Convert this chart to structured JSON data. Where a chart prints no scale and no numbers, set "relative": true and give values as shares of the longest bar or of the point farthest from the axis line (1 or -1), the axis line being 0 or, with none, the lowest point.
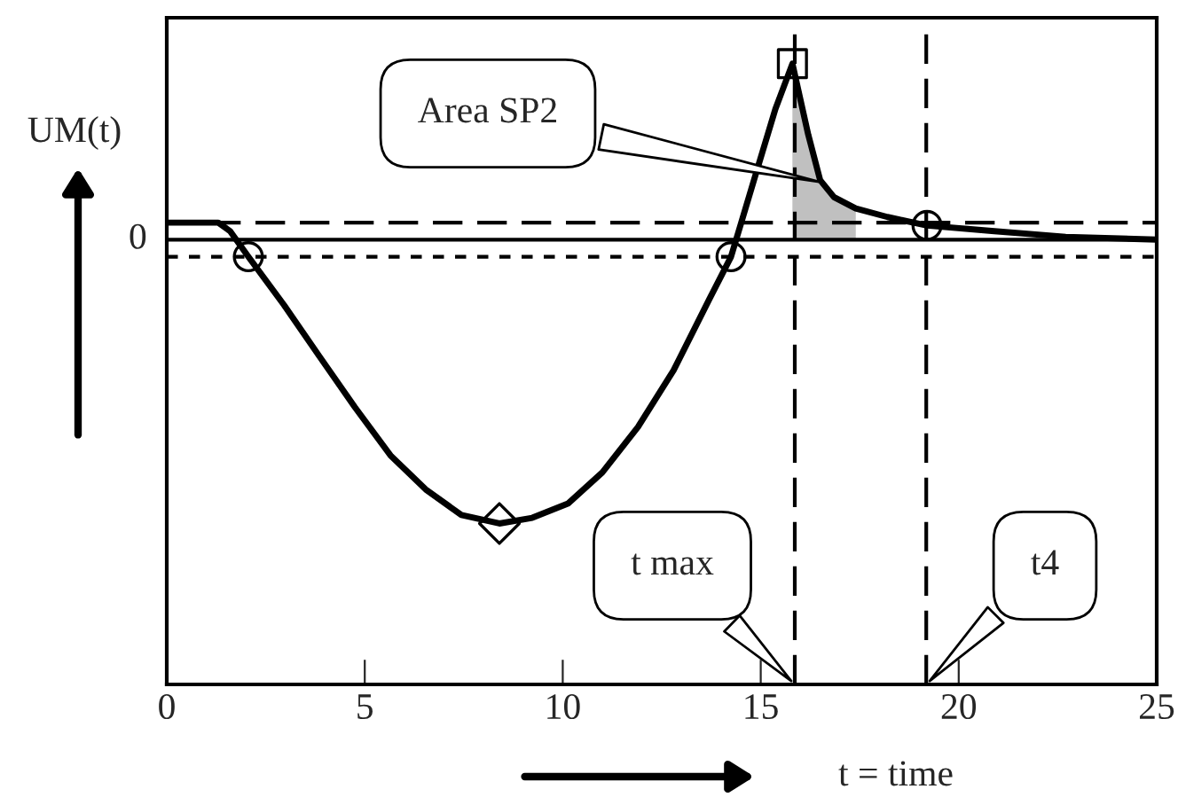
{
  "chart_data": {
    "type": "line",
    "relative": true,
    "xlabel": "t = time",
    "ylabel": "UM(t)",
    "xlim": [
      0,
      25
    ],
    "xticks": [
      0,
      5,
      10,
      15,
      20,
      25
    ],
    "tick_labels": "x",
    "grid": false,
    "series": [
      {
        "type": "area",
        "color": "#c0c0c0",
        "x": [
          15.8,
          16.2,
          16.5,
          16.85,
          17.4
        ],
        "values": [
          0.62,
          0.37,
          0.21,
          0.15,
          0.11
        ]
      },
      {
        "type": "line",
        "color": "#000000",
        "marker": "none",
        "line_style": "solid",
        "x": [
          0,
          1.3,
          1.6,
          2.06,
          2.96,
          3.85,
          4.75,
          5.65,
          6.54,
          7.44,
          8.4,
          9.23,
          10.13,
          11.0,
          11.9,
          12.8,
          13.7,
          14.25,
          14.83,
          15.37,
          15.8,
          16.2,
          16.5,
          16.85,
          17.4,
          18.2,
          19.2,
          20.9,
          22.7,
          25
        ],
        "values": [
          0.06,
          0.06,
          0.03,
          -0.06,
          -0.23,
          -0.41,
          -0.59,
          -0.76,
          -0.88,
          -0.97,
          -1,
          -0.98,
          -0.93,
          -0.82,
          -0.66,
          -0.46,
          -0.21,
          -0.06,
          0.21,
          0.46,
          0.62,
          0.37,
          0.21,
          0.15,
          0.11,
          0.08,
          0.05,
          0.03,
          0.01,
          0
        ]
      },
      {
        "type": "scatter",
        "color": "#000000",
        "marker": "circle",
        "x": [
          2.06,
          14.25,
          19.2
        ],
        "values": [
          -0.06,
          -0.06,
          0.05
        ]
      },
      {
        "type": "scatter",
        "color": "#000000",
        "marker": "square",
        "x": [
          15.8
        ],
        "values": [
          0.62
        ]
      },
      {
        "type": "scatter",
        "color": "#000000",
        "marker": "diamond",
        "x": [
          8.4
        ],
        "values": [
          -1
        ]
      }
    ],
    "ref_lines": [
      {
        "axis": "y",
        "value": 0,
        "label": "0",
        "line_style": "solid"
      },
      {
        "axis": "y",
        "value": 0.06,
        "line_style": "dashed"
      },
      {
        "axis": "y",
        "value": -0.06,
        "line_style": "dotted"
      },
      {
        "axis": "x",
        "value": 15.86,
        "label": "t max",
        "line_style": "dashed"
      },
      {
        "axis": "x",
        "value": 19.18,
        "label": "t4",
        "line_style": "dashed"
      }
    ],
    "annotations": [
      {
        "text": "Area SP2",
        "x": 16.6,
        "y": 0.2
      }
    ]
  }
}
